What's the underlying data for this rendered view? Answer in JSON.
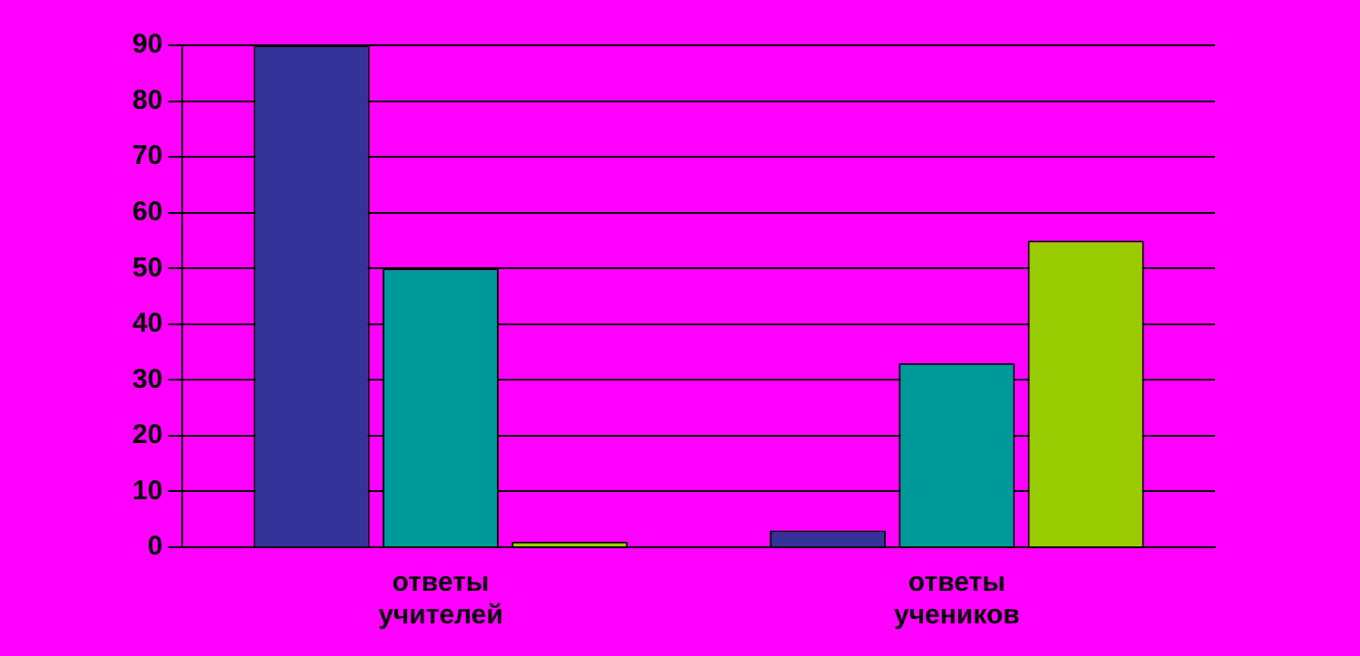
{
  "chart_data": {
    "type": "bar",
    "categories": [
      "ответы учителей",
      "ответы учеников"
    ],
    "series": [
      {
        "color": "#333399",
        "values": [
          90,
          3
        ]
      },
      {
        "color": "#009999",
        "values": [
          50,
          33
        ]
      },
      {
        "color": "#99cc00",
        "values": [
          1,
          55
        ]
      }
    ],
    "ylim": [
      0,
      90
    ],
    "yticks": [
      0,
      10,
      20,
      30,
      40,
      50,
      60,
      70,
      80,
      90
    ],
    "grid": "y",
    "legend": false
  }
}
